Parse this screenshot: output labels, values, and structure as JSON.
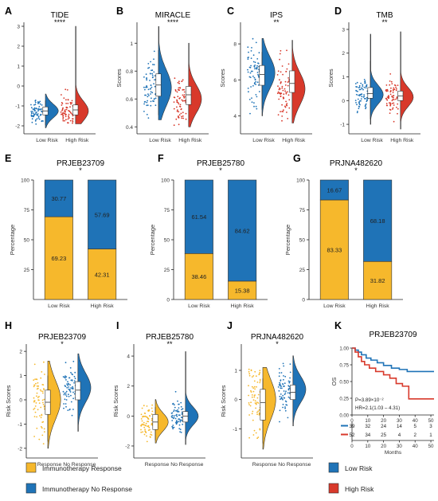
{
  "colors": {
    "low": "#1f73b7",
    "high": "#d8392b",
    "response": "#f6b82c",
    "noresponse": "#1f73b7",
    "axis": "#222222"
  },
  "chart_data": [
    {
      "id": "A",
      "type": "violin",
      "title": "TIDE",
      "sig": "****",
      "ylabel": "",
      "ylim": [
        -2.4,
        3.2
      ],
      "yticks": [
        -2,
        -1,
        0,
        1,
        2,
        3
      ],
      "categories": [
        "Low Risk",
        "High Risk"
      ],
      "series": [
        {
          "median": -1.25,
          "q1": -1.45,
          "q3": -1.05,
          "min": -2.1,
          "max": -0.4,
          "density_peak": -1.25,
          "spread": 0.35
        },
        {
          "median": -1.2,
          "q1": -1.45,
          "q3": -0.95,
          "min": -1.9,
          "max": 3.0,
          "density_peak": -1.25,
          "spread": 0.5
        }
      ]
    },
    {
      "id": "B",
      "type": "violin",
      "title": "MIRACLE",
      "sig": "****",
      "ylabel": "Scores",
      "ylim": [
        0.35,
        1.15
      ],
      "yticks": [
        0.4,
        0.6,
        0.8,
        1.0
      ],
      "categories": [
        "Low Risk",
        "High Risk"
      ],
      "series": [
        {
          "median": 0.7,
          "q1": 0.62,
          "q3": 0.78,
          "min": 0.45,
          "max": 1.12,
          "density_peak": 0.68,
          "spread": 0.13
        },
        {
          "median": 0.63,
          "q1": 0.56,
          "q3": 0.69,
          "min": 0.4,
          "max": 1.0,
          "density_peak": 0.6,
          "spread": 0.1
        }
      ]
    },
    {
      "id": "C",
      "type": "violin",
      "title": "IPS",
      "sig": "**",
      "ylabel": "Scores",
      "ylim": [
        3.0,
        9.2
      ],
      "yticks": [
        4,
        6,
        8
      ],
      "categories": [
        "Low Risk",
        "High Risk"
      ],
      "series": [
        {
          "median": 6.3,
          "q1": 5.7,
          "q3": 6.8,
          "min": 4.0,
          "max": 8.3,
          "density_peak": 6.4,
          "spread": 0.9
        },
        {
          "median": 5.8,
          "q1": 5.3,
          "q3": 6.5,
          "min": 3.6,
          "max": 8.2,
          "density_peak": 5.5,
          "spread": 0.9
        }
      ]
    },
    {
      "id": "D",
      "type": "violin",
      "title": "TMB",
      "sig": "**",
      "ylabel": "Scores",
      "ylim": [
        -1.4,
        3.3
      ],
      "yticks": [
        -1,
        0,
        1,
        2,
        3
      ],
      "categories": [
        "Low Risk",
        "High Risk"
      ],
      "series": [
        {
          "median": 0.3,
          "q1": 0.1,
          "q3": 0.55,
          "min": -1.0,
          "max": 2.8,
          "density_peak": 0.25,
          "spread": 0.4
        },
        {
          "median": 0.2,
          "q1": 0.0,
          "q3": 0.4,
          "min": -1.2,
          "max": 2.9,
          "density_peak": 0.15,
          "spread": 0.4
        }
      ]
    },
    {
      "id": "E",
      "type": "stacked-bar",
      "title": "PRJEB23709",
      "sig": "*",
      "ylabel": "Percentage",
      "ylim": [
        0,
        100
      ],
      "yticks": [
        0,
        25,
        50,
        75,
        100
      ],
      "show_zero_tick": false,
      "categories": [
        "Low Risk",
        "High Risk"
      ],
      "series": [
        {
          "name": "Immunotherapy Response",
          "values": [
            69.23,
            42.31
          ],
          "labels": [
            "69.23",
            "42.31"
          ]
        },
        {
          "name": "Immunotherapy No Response",
          "values": [
            30.77,
            57.69
          ],
          "labels": [
            "30.77",
            "57.69"
          ]
        }
      ]
    },
    {
      "id": "F",
      "type": "stacked-bar",
      "title": "PRJEB25780",
      "sig": "*",
      "ylabel": "Percentage",
      "ylim": [
        0,
        100
      ],
      "yticks": [
        0,
        25,
        50,
        75,
        100
      ],
      "show_zero_tick": true,
      "categories": [
        "Low Risk",
        "High Risk"
      ],
      "series": [
        {
          "name": "Immunotherapy Response",
          "values": [
            38.46,
            15.38
          ],
          "labels": [
            "38.46",
            "15.38"
          ]
        },
        {
          "name": "Immunotherapy No Response",
          "values": [
            61.54,
            84.62
          ],
          "labels": [
            "61.54",
            "84.62"
          ]
        }
      ]
    },
    {
      "id": "G",
      "type": "stacked-bar",
      "title": "PRJNA482620",
      "sig": "*",
      "ylabel": "Percentage",
      "ylim": [
        0,
        100
      ],
      "yticks": [
        0,
        25,
        50,
        75,
        100
      ],
      "show_zero_tick": true,
      "categories": [
        "Low Risk",
        "High Risk"
      ],
      "series": [
        {
          "name": "Immunotherapy Response",
          "values": [
            83.33,
            31.82
          ],
          "labels": [
            "83.33",
            "31.82"
          ]
        },
        {
          "name": "Immunotherapy No Response",
          "values": [
            16.67,
            68.18
          ],
          "labels": [
            "16.67",
            "68.18"
          ]
        }
      ]
    },
    {
      "id": "H",
      "type": "violin",
      "title": "PRJEB23709",
      "sig": "*",
      "ylabel": "Risk Scores",
      "ylim": [
        -2.4,
        2.3
      ],
      "yticks": [
        -2,
        -1,
        0,
        1,
        2
      ],
      "categories": [
        "Response",
        "No Response"
      ],
      "series": [
        {
          "median": -0.1,
          "q1": -0.6,
          "q3": 0.4,
          "min": -2.0,
          "max": 1.6,
          "density_peak": 0.0,
          "spread": 0.8
        },
        {
          "median": 0.4,
          "q1": 0.0,
          "q3": 0.75,
          "min": -1.3,
          "max": 1.9,
          "density_peak": 0.5,
          "spread": 0.6
        }
      ]
    },
    {
      "id": "I",
      "type": "violin",
      "title": "PRJEB25780",
      "sig": "**",
      "ylabel": "Risk Scores",
      "ylim": [
        -2.8,
        4.8
      ],
      "yticks": [
        -2,
        0,
        2,
        4
      ],
      "categories": [
        "Response",
        "No Response"
      ],
      "series": [
        {
          "median": -0.4,
          "q1": -0.9,
          "q3": 0.1,
          "min": -1.8,
          "max": 1.1,
          "density_peak": -0.4,
          "spread": 0.6
        },
        {
          "median": 0.0,
          "q1": -0.4,
          "q3": 0.3,
          "min": -1.9,
          "max": 4.3,
          "density_peak": 0.0,
          "spread": 0.6
        }
      ]
    },
    {
      "id": "J",
      "type": "violin",
      "title": "PRJNA482620",
      "sig": "*",
      "ylabel": "Risk Scores",
      "ylim": [
        -2.0,
        1.9
      ],
      "yticks": [
        -1,
        0,
        1
      ],
      "categories": [
        "Response",
        "No Response"
      ],
      "series": [
        {
          "median": -0.1,
          "q1": -0.7,
          "q3": 0.35,
          "min": -1.7,
          "max": 1.1,
          "density_peak": 0.0,
          "spread": 0.7
        },
        {
          "median": 0.25,
          "q1": 0.0,
          "q3": 0.5,
          "min": -0.9,
          "max": 1.5,
          "density_peak": 0.35,
          "spread": 0.45
        }
      ]
    },
    {
      "id": "K",
      "type": "km",
      "title": "PRJEB23709",
      "ylabel": "OS",
      "xlabel": "Months",
      "xlim": [
        0,
        52
      ],
      "xticks": [
        0,
        10,
        20,
        30,
        40,
        50
      ],
      "ylim": [
        0,
        1
      ],
      "yticks": [
        "0.00",
        "0.25",
        "0.50",
        "0.75",
        "1.00"
      ],
      "pvalue": "P=3.89×10⁻²",
      "hr": "HR=2.1(1.03 – 4.31)",
      "series": [
        {
          "name": "Low Risk",
          "steps": [
            [
              0,
              1.0
            ],
            [
              2,
              0.97
            ],
            [
              4,
              0.94
            ],
            [
              6,
              0.9
            ],
            [
              9,
              0.85
            ],
            [
              12,
              0.82
            ],
            [
              16,
              0.78
            ],
            [
              20,
              0.74
            ],
            [
              25,
              0.7
            ],
            [
              30,
              0.68
            ],
            [
              35,
              0.65
            ],
            [
              52,
              0.65
            ]
          ]
        },
        {
          "name": "High Risk",
          "steps": [
            [
              0,
              1.0
            ],
            [
              2,
              0.94
            ],
            [
              4,
              0.87
            ],
            [
              6,
              0.8
            ],
            [
              8,
              0.75
            ],
            [
              11,
              0.7
            ],
            [
              15,
              0.65
            ],
            [
              20,
              0.6
            ],
            [
              24,
              0.55
            ],
            [
              28,
              0.47
            ],
            [
              32,
              0.43
            ],
            [
              36,
              0.24
            ],
            [
              52,
              0.24
            ]
          ]
        }
      ],
      "risk_table": {
        "times": [
          0,
          10,
          20,
          30,
          40,
          50
        ],
        "rows": [
          {
            "name": "Low Risk",
            "counts": [
              "39",
              "32",
              "24",
              "14",
              "5",
              "3"
            ]
          },
          {
            "name": "High Risk",
            "counts": [
              "52",
              "34",
              "25",
              "4",
              "2",
              "1"
            ]
          }
        ]
      }
    }
  ],
  "legends": {
    "left": [
      {
        "label": "Immunotherapy Response",
        "color": "#f6b82c"
      },
      {
        "label": "Immunotherapy No Response",
        "color": "#1f73b7"
      }
    ],
    "right": [
      {
        "label": "Low Risk",
        "color": "#1f73b7"
      },
      {
        "label": "High Risk",
        "color": "#d8392b"
      }
    ]
  }
}
